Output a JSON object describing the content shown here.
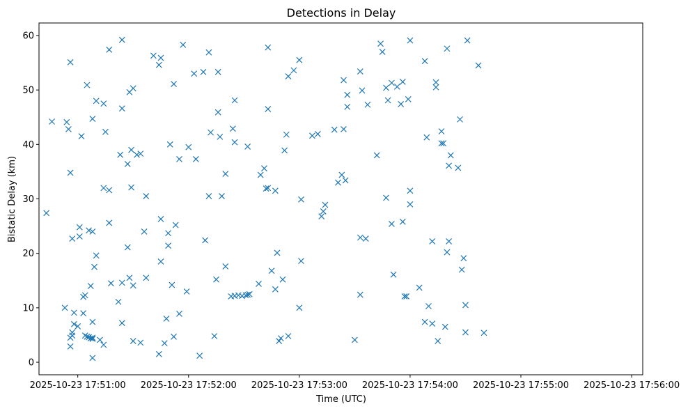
{
  "chart_data": {
    "type": "scatter",
    "title": "Detections in Delay",
    "xlabel": "Time (UTC)",
    "ylabel": "Bistatic Delay (km)",
    "x_unit": "time (UTC)",
    "x_ticks": [
      "2025-10-23 17:51:00",
      "2025-10-23 17:52:00",
      "2025-10-23 17:53:00",
      "2025-10-23 17:54:00",
      "2025-10-23 17:55:00",
      "2025-10-23 17:56:00"
    ],
    "y_ticks": [
      "0",
      "10",
      "20",
      "30",
      "40",
      "50",
      "60"
    ],
    "xlim": [
      "2025-10-23 17:50:39",
      "2025-10-23 17:56:06"
    ],
    "ylim": [
      -2.3,
      62.3
    ],
    "marker": "x",
    "color": "#1f77b4",
    "grid": false,
    "series": [
      {
        "points": [
          [
            "2025-10-23 17:50:43",
            27.4
          ],
          [
            "2025-10-23 17:50:46",
            44.2
          ],
          [
            "2025-10-23 17:50:53",
            10.0
          ],
          [
            "2025-10-23 17:50:54",
            44.1
          ],
          [
            "2025-10-23 17:50:55",
            42.8
          ],
          [
            "2025-10-23 17:50:56",
            55.1
          ],
          [
            "2025-10-23 17:50:56",
            34.8
          ],
          [
            "2025-10-23 17:50:57",
            22.7
          ],
          [
            "2025-10-23 17:50:56",
            4.5
          ],
          [
            "2025-10-23 17:50:56",
            2.9
          ],
          [
            "2025-10-23 17:50:57",
            4.9
          ],
          [
            "2025-10-23 17:50:57",
            5.5
          ],
          [
            "2025-10-23 17:50:58",
            9.1
          ],
          [
            "2025-10-23 17:50:58",
            7.0
          ],
          [
            "2025-10-23 17:51:00",
            6.6
          ],
          [
            "2025-10-23 17:51:01",
            24.8
          ],
          [
            "2025-10-23 17:51:01",
            23.1
          ],
          [
            "2025-10-23 17:51:02",
            41.5
          ],
          [
            "2025-10-23 17:51:03",
            9.0
          ],
          [
            "2025-10-23 17:51:03",
            12.0
          ],
          [
            "2025-10-23 17:51:04",
            12.3
          ],
          [
            "2025-10-23 17:51:04",
            4.9
          ],
          [
            "2025-10-23 17:51:05",
            4.7
          ],
          [
            "2025-10-23 17:51:05",
            50.9
          ],
          [
            "2025-10-23 17:51:06",
            24.2
          ],
          [
            "2025-10-23 17:51:06",
            4.6
          ],
          [
            "2025-10-23 17:51:07",
            14.0
          ],
          [
            "2025-10-23 17:51:07",
            4.4
          ],
          [
            "2025-10-23 17:51:08",
            4.5
          ],
          [
            "2025-10-23 17:51:08",
            4.3
          ],
          [
            "2025-10-23 17:51:08",
            44.7
          ],
          [
            "2025-10-23 17:51:08",
            24.0
          ],
          [
            "2025-10-23 17:51:08",
            7.4
          ],
          [
            "2025-10-23 17:51:08",
            0.8
          ],
          [
            "2025-10-23 17:51:09",
            17.5
          ],
          [
            "2025-10-23 17:51:10",
            48.0
          ],
          [
            "2025-10-23 17:51:10",
            19.6
          ],
          [
            "2025-10-23 17:51:12",
            4.1
          ],
          [
            "2025-10-23 17:51:14",
            32.0
          ],
          [
            "2025-10-23 17:51:14",
            47.5
          ],
          [
            "2025-10-23 17:51:15",
            42.3
          ],
          [
            "2025-10-23 17:51:14",
            3.2
          ],
          [
            "2025-10-23 17:51:17",
            57.4
          ],
          [
            "2025-10-23 17:51:17",
            31.6
          ],
          [
            "2025-10-23 17:51:17",
            25.6
          ],
          [
            "2025-10-23 17:51:18",
            14.5
          ],
          [
            "2025-10-23 17:51:22",
            11.1
          ],
          [
            "2025-10-23 17:51:23",
            38.1
          ],
          [
            "2025-10-23 17:51:24",
            59.2
          ],
          [
            "2025-10-23 17:51:24",
            46.6
          ],
          [
            "2025-10-23 17:51:24",
            14.6
          ],
          [
            "2025-10-23 17:51:24",
            7.2
          ],
          [
            "2025-10-23 17:51:28",
            49.6
          ],
          [
            "2025-10-23 17:51:27",
            36.4
          ],
          [
            "2025-10-23 17:51:27",
            21.1
          ],
          [
            "2025-10-23 17:51:28",
            15.5
          ],
          [
            "2025-10-23 17:51:29",
            39.0
          ],
          [
            "2025-10-23 17:51:29",
            32.1
          ],
          [
            "2025-10-23 17:51:30",
            50.3
          ],
          [
            "2025-10-23 17:51:30",
            14.1
          ],
          [
            "2025-10-23 17:51:30",
            3.9
          ],
          [
            "2025-10-23 17:51:32",
            38.1
          ],
          [
            "2025-10-23 17:51:34",
            38.3
          ],
          [
            "2025-10-23 17:51:34",
            3.6
          ],
          [
            "2025-10-23 17:51:36",
            24.0
          ],
          [
            "2025-10-23 17:51:37",
            30.5
          ],
          [
            "2025-10-23 17:51:37",
            15.5
          ],
          [
            "2025-10-23 17:51:41",
            56.3
          ],
          [
            "2025-10-23 17:51:44",
            54.6
          ],
          [
            "2025-10-23 17:51:45",
            55.9
          ],
          [
            "2025-10-23 17:51:45",
            26.3
          ],
          [
            "2025-10-23 17:51:45",
            18.5
          ],
          [
            "2025-10-23 17:51:44",
            1.5
          ],
          [
            "2025-10-23 17:51:47",
            3.5
          ],
          [
            "2025-10-23 17:51:48",
            8.0
          ],
          [
            "2025-10-23 17:51:49",
            23.7
          ],
          [
            "2025-10-23 17:51:49",
            21.4
          ],
          [
            "2025-10-23 17:51:50",
            40.0
          ],
          [
            "2025-10-23 17:51:51",
            14.2
          ],
          [
            "2025-10-23 17:51:52",
            51.1
          ],
          [
            "2025-10-23 17:51:52",
            4.7
          ],
          [
            "2025-10-23 17:51:53",
            25.2
          ],
          [
            "2025-10-23 17:51:55",
            37.3
          ],
          [
            "2025-10-23 17:51:55",
            8.9
          ],
          [
            "2025-10-23 17:51:57",
            58.3
          ],
          [
            "2025-10-23 17:51:59",
            13.0
          ],
          [
            "2025-10-23 17:52:00",
            39.5
          ],
          [
            "2025-10-23 17:52:03",
            53.0
          ],
          [
            "2025-10-23 17:52:04",
            37.3
          ],
          [
            "2025-10-23 17:52:06",
            1.2
          ],
          [
            "2025-10-23 17:52:08",
            53.3
          ],
          [
            "2025-10-23 17:52:09",
            22.4
          ],
          [
            "2025-10-23 17:52:11",
            56.9
          ],
          [
            "2025-10-23 17:52:11",
            30.5
          ],
          [
            "2025-10-23 17:52:12",
            42.2
          ],
          [
            "2025-10-23 17:52:14",
            4.8
          ],
          [
            "2025-10-23 17:52:15",
            15.2
          ],
          [
            "2025-10-23 17:52:16",
            45.9
          ],
          [
            "2025-10-23 17:52:16",
            53.3
          ],
          [
            "2025-10-23 17:52:17",
            41.4
          ],
          [
            "2025-10-23 17:52:18",
            30.5
          ],
          [
            "2025-10-23 17:52:20",
            34.6
          ],
          [
            "2025-10-23 17:52:20",
            17.6
          ],
          [
            "2025-10-23 17:52:23",
            12.1
          ],
          [
            "2025-10-23 17:52:25",
            12.2
          ],
          [
            "2025-10-23 17:52:27",
            12.3
          ],
          [
            "2025-10-23 17:52:29",
            12.2
          ],
          [
            "2025-10-23 17:52:31",
            12.3
          ],
          [
            "2025-10-23 17:52:32",
            12.4
          ],
          [
            "2025-10-23 17:52:33",
            12.5
          ],
          [
            "2025-10-23 17:52:24",
            42.9
          ],
          [
            "2025-10-23 17:52:25",
            48.1
          ],
          [
            "2025-10-23 17:52:25",
            40.4
          ],
          [
            "2025-10-23 17:52:32",
            39.6
          ],
          [
            "2025-10-23 17:52:38",
            14.4
          ],
          [
            "2025-10-23 17:52:39",
            34.4
          ],
          [
            "2025-10-23 17:52:41",
            35.6
          ],
          [
            "2025-10-23 17:52:42",
            31.9
          ],
          [
            "2025-10-23 17:52:43",
            46.5
          ],
          [
            "2025-10-23 17:52:43",
            57.8
          ],
          [
            "2025-10-23 17:52:43",
            32.0
          ],
          [
            "2025-10-23 17:52:45",
            16.8
          ],
          [
            "2025-10-23 17:52:47",
            31.5
          ],
          [
            "2025-10-23 17:52:47",
            13.4
          ],
          [
            "2025-10-23 17:52:48",
            20.1
          ],
          [
            "2025-10-23 17:52:49",
            3.9
          ],
          [
            "2025-10-23 17:52:50",
            4.4
          ],
          [
            "2025-10-23 17:52:51",
            15.2
          ],
          [
            "2025-10-23 17:52:52",
            38.9
          ],
          [
            "2025-10-23 17:52:53",
            41.8
          ],
          [
            "2025-10-23 17:52:54",
            52.5
          ],
          [
            "2025-10-23 17:52:54",
            4.8
          ],
          [
            "2025-10-23 17:52:57",
            53.6
          ],
          [
            "2025-10-23 17:53:00",
            55.5
          ],
          [
            "2025-10-23 17:53:01",
            29.9
          ],
          [
            "2025-10-23 17:53:01",
            18.6
          ],
          [
            "2025-10-23 17:53:00",
            10.0
          ],
          [
            "2025-10-23 17:53:07",
            41.6
          ],
          [
            "2025-10-23 17:53:10",
            41.9
          ],
          [
            "2025-10-23 17:53:12",
            26.8
          ],
          [
            "2025-10-23 17:53:13",
            27.7
          ],
          [
            "2025-10-23 17:53:14",
            28.9
          ],
          [
            "2025-10-23 17:53:19",
            42.7
          ],
          [
            "2025-10-23 17:53:21",
            33.0
          ],
          [
            "2025-10-23 17:53:23",
            34.4
          ],
          [
            "2025-10-23 17:53:24",
            42.8
          ],
          [
            "2025-10-23 17:53:25",
            33.4
          ],
          [
            "2025-10-23 17:53:24",
            51.8
          ],
          [
            "2025-10-23 17:53:26",
            49.1
          ],
          [
            "2025-10-23 17:53:26",
            46.9
          ],
          [
            "2025-10-23 17:53:30",
            4.1
          ],
          [
            "2025-10-23 17:53:33",
            53.4
          ],
          [
            "2025-10-23 17:53:34",
            49.9
          ],
          [
            "2025-10-23 17:53:33",
            22.9
          ],
          [
            "2025-10-23 17:53:33",
            12.4
          ],
          [
            "2025-10-23 17:53:36",
            22.7
          ],
          [
            "2025-10-23 17:53:37",
            47.3
          ],
          [
            "2025-10-23 17:53:42",
            38.0
          ],
          [
            "2025-10-23 17:53:44",
            58.5
          ],
          [
            "2025-10-23 17:53:45",
            57.0
          ],
          [
            "2025-10-23 17:53:47",
            50.4
          ],
          [
            "2025-10-23 17:53:47",
            30.2
          ],
          [
            "2025-10-23 17:53:48",
            48.1
          ],
          [
            "2025-10-23 17:53:50",
            51.3
          ],
          [
            "2025-10-23 17:53:50",
            25.4
          ],
          [
            "2025-10-23 17:53:51",
            16.1
          ],
          [
            "2025-10-23 17:53:53",
            50.6
          ],
          [
            "2025-10-23 17:53:55",
            47.4
          ],
          [
            "2025-10-23 17:53:56",
            51.5
          ],
          [
            "2025-10-23 17:53:56",
            25.8
          ],
          [
            "2025-10-23 17:53:57",
            12.1
          ],
          [
            "2025-10-23 17:53:58",
            12.1
          ],
          [
            "2025-10-23 17:53:59",
            48.3
          ],
          [
            "2025-10-23 17:54:00",
            59.1
          ],
          [
            "2025-10-23 17:54:00",
            31.5
          ],
          [
            "2025-10-23 17:54:00",
            29.0
          ],
          [
            "2025-10-23 17:54:05",
            13.7
          ],
          [
            "2025-10-23 17:54:08",
            55.3
          ],
          [
            "2025-10-23 17:54:08",
            7.4
          ],
          [
            "2025-10-23 17:54:09",
            41.3
          ],
          [
            "2025-10-23 17:54:10",
            10.3
          ],
          [
            "2025-10-23 17:54:12",
            22.2
          ],
          [
            "2025-10-23 17:54:12",
            7.1
          ],
          [
            "2025-10-23 17:54:14",
            51.4
          ],
          [
            "2025-10-23 17:54:14",
            50.5
          ],
          [
            "2025-10-23 17:54:15",
            3.9
          ],
          [
            "2025-10-23 17:54:17",
            42.4
          ],
          [
            "2025-10-23 17:54:17",
            40.2
          ],
          [
            "2025-10-23 17:54:18",
            40.2
          ],
          [
            "2025-10-23 17:54:19",
            6.5
          ],
          [
            "2025-10-23 17:54:20",
            57.6
          ],
          [
            "2025-10-23 17:54:21",
            36.1
          ],
          [
            "2025-10-23 17:54:21",
            22.2
          ],
          [
            "2025-10-23 17:54:20",
            20.2
          ],
          [
            "2025-10-23 17:54:22",
            38.0
          ],
          [
            "2025-10-23 17:54:26",
            35.7
          ],
          [
            "2025-10-23 17:54:27",
            44.6
          ],
          [
            "2025-10-23 17:54:28",
            17.0
          ],
          [
            "2025-10-23 17:54:29",
            19.1
          ],
          [
            "2025-10-23 17:54:30",
            5.5
          ],
          [
            "2025-10-23 17:54:30",
            10.5
          ],
          [
            "2025-10-23 17:54:31",
            59.1
          ],
          [
            "2025-10-23 17:54:37",
            54.5
          ],
          [
            "2025-10-23 17:54:40",
            5.4
          ]
        ]
      }
    ]
  }
}
